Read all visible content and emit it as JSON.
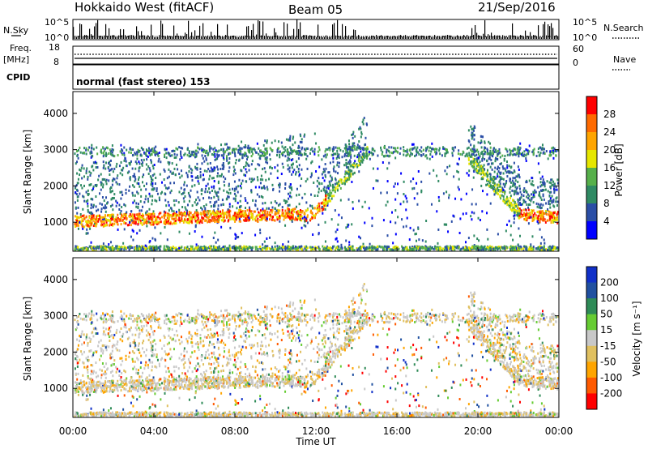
{
  "header": {
    "title": "Hokkaido West (fitACF)",
    "beam": "Beam 05",
    "date": "21/Sep/2016"
  },
  "top_panel": {
    "nsky_label": "N.Sky",
    "nsky_tick_high": "10^5",
    "nsky_tick_low": "10^0",
    "nsearch_label": "N.Search",
    "freq_label_1": "Freq.",
    "freq_label_2": "[MHz]",
    "freq_tick_high": "18",
    "freq_tick_low": "8",
    "nave_tick_high": "60",
    "nave_tick_low": "0",
    "nave_label": "Nave",
    "cpid_label": "CPID",
    "cpid_text": "normal (fast stereo) 153"
  },
  "colors": {
    "power": [
      "#0000ff",
      "#2a4ea6",
      "#2f8a63",
      "#56b04a",
      "#e6e600",
      "#ffa500",
      "#ff6a00",
      "#ff0000"
    ],
    "velocity": [
      "#ff0000",
      "#ff5a00",
      "#ffa500",
      "#e0c060",
      "#c8c8c8",
      "#66cc33",
      "#2e8b57",
      "#2050a0",
      "#1030c8"
    ]
  },
  "chart_data": [
    {
      "type": "heatmap",
      "name": "Power",
      "ylabel": "Slant Range [km]",
      "y_ticks": [
        1000,
        2000,
        3000,
        4000
      ],
      "ylim": [
        200,
        4600
      ],
      "colorbar_label": "Power [dB]",
      "colorbar_ticks": [
        4,
        8,
        12,
        16,
        20,
        24,
        28
      ],
      "colorbar_range": [
        0,
        32
      ]
    },
    {
      "type": "heatmap",
      "name": "Velocity",
      "ylabel": "Slant Range [km]",
      "y_ticks": [
        1000,
        2000,
        3000,
        4000
      ],
      "ylim": [
        200,
        4600
      ],
      "colorbar_label": "Velocity [m s⁻¹]",
      "colorbar_ticks": [
        "-200",
        "-100",
        "-50",
        "-15",
        "15",
        "50",
        "100",
        "200"
      ]
    }
  ],
  "x_axis": {
    "label": "Time UT",
    "ticks": [
      "00:00",
      "04:00",
      "08:00",
      "12:00",
      "16:00",
      "20:00",
      "00:00"
    ]
  }
}
